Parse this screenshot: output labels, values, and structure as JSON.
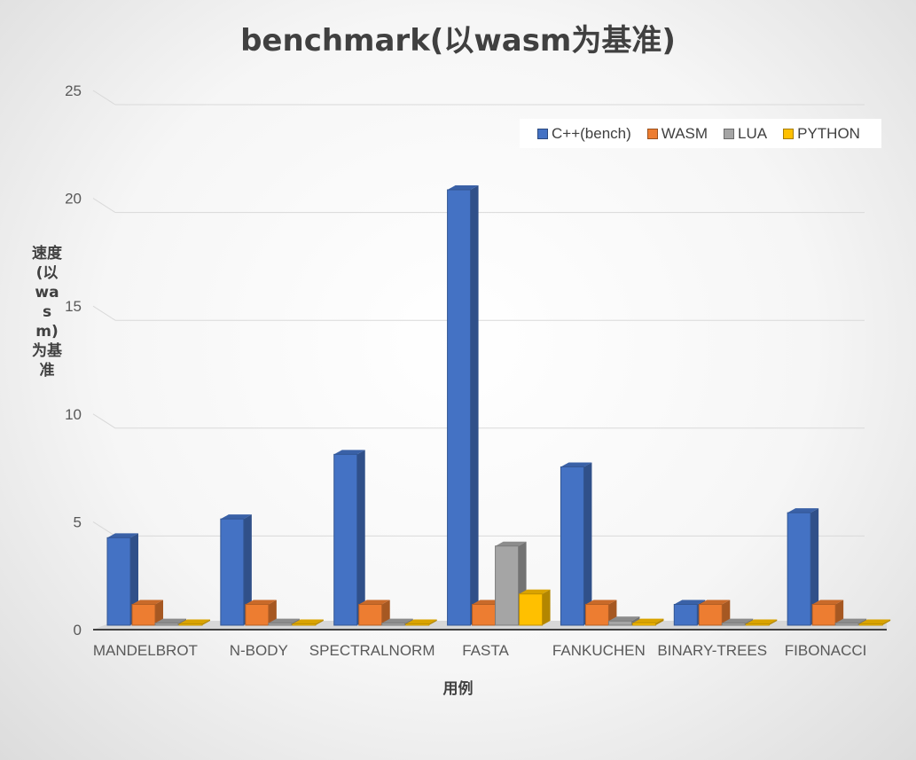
{
  "chart_data": {
    "type": "bar",
    "title": "benchmark(以wasm为基准)",
    "ylabel": "速度(以wasm)为基准",
    "xlabel": "用例",
    "categories": [
      "MANDELBROT",
      "N-BODY",
      "SPECTRALNORM",
      "FASTA",
      "FANKUCHEN",
      "BINARY-TREES",
      "FIBONACCI"
    ],
    "y_ticks": [
      "0",
      "5",
      "10",
      "15",
      "20",
      "25"
    ],
    "ylim": [
      0,
      25
    ],
    "grid": true,
    "legend_position": "top-right",
    "series": [
      {
        "name": "C++(bench)",
        "color": "#4472c4",
        "values": [
          4.2,
          5.1,
          8.2,
          20.9,
          7.6,
          1.0,
          5.4
        ]
      },
      {
        "name": "WASM",
        "color": "#ed7d31",
        "values": [
          1,
          1,
          1,
          1,
          1,
          1,
          1
        ]
      },
      {
        "name": "LUA",
        "color": "#a5a5a5",
        "values": [
          0.1,
          0.1,
          0.1,
          3.8,
          0.2,
          0.1,
          0.1
        ]
      },
      {
        "name": "PYTHON",
        "color": "#ffc000",
        "values": [
          0.05,
          0.05,
          0.05,
          1.5,
          0.1,
          0.05,
          0.05
        ]
      }
    ]
  }
}
